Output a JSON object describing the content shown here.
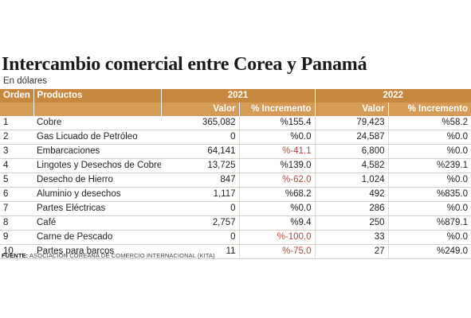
{
  "title": "Intercambio comercial entre Corea y Panamá",
  "subtitle": "En dólares",
  "headers": {
    "order": "Orden",
    "products": "Productos",
    "year1": "2021",
    "year2": "2022",
    "value": "Valor",
    "increase": "% Incremento"
  },
  "rows": [
    {
      "order": "1",
      "product": "Cobre",
      "v2021": "365,082",
      "i2021": "%155.4",
      "v2022": "79,423",
      "i2022": "%58.2",
      "neg2021": false
    },
    {
      "order": "2",
      "product": "Gas Licuado de Petróleo",
      "v2021": "0",
      "i2021": "%0.0",
      "v2022": "24,587",
      "i2022": "%0.0",
      "neg2021": false
    },
    {
      "order": "3",
      "product": "Embarcaciones",
      "v2021": "64,141",
      "i2021": "%-41.1",
      "v2022": "6,800",
      "i2022": "%0.0",
      "neg2021": true
    },
    {
      "order": "4",
      "product": "Lingotes y Desechos de Cobre",
      "v2021": "13,725",
      "i2021": "%139.0",
      "v2022": "4,582",
      "i2022": "%239.1",
      "neg2021": false
    },
    {
      "order": "5",
      "product": "Desecho de Hierro",
      "v2021": "847",
      "i2021": "%-62.0",
      "v2022": "1,024",
      "i2022": "%0.0",
      "neg2021": true
    },
    {
      "order": "6",
      "product": "Aluminio y desechos",
      "v2021": "1,117",
      "i2021": "%68.2",
      "v2022": "492",
      "i2022": "%835.0",
      "neg2021": false
    },
    {
      "order": "7",
      "product": "Partes Eléctricas",
      "v2021": "0",
      "i2021": "%0.0",
      "v2022": "286",
      "i2022": "%0.0",
      "neg2021": false
    },
    {
      "order": "8",
      "product": "Café",
      "v2021": "2,757",
      "i2021": "%9.4",
      "v2022": "250",
      "i2022": "%879.1",
      "neg2021": false
    },
    {
      "order": "9",
      "product": "Carne de Pescado",
      "v2021": "0",
      "i2021": "%-100.0",
      "v2022": "33",
      "i2022": "%0.0",
      "neg2021": true
    },
    {
      "order": "10",
      "product": "Partes para barcos",
      "v2021": "11",
      "i2021": "%-75.0",
      "v2022": "27",
      "i2022": "%249.0",
      "neg2021": true
    }
  ],
  "source": {
    "label": "FUENTE:",
    "text": "ASOCIACIÓN COREANA DE COMERCIO INTERNACIONAL (KITA)"
  },
  "colors": {
    "header_dark": "#c8873e",
    "header_light": "#d69b57",
    "negative": "#b5463a"
  }
}
